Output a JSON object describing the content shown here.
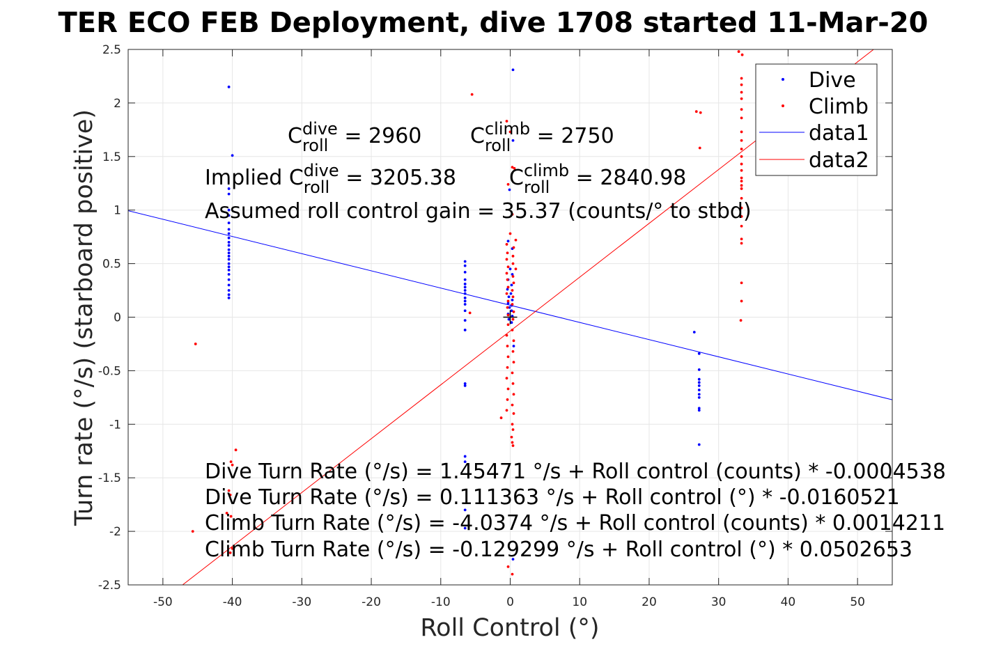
{
  "chart_data": {
    "type": "scatter",
    "title": "TER ECO FEB Deployment, dive 1708 started 11-Mar-20",
    "xlabel": "Roll Control (°)",
    "ylabel": "Turn rate (°/s) (starboard positive)",
    "xlim": [
      -55,
      55
    ],
    "ylim": [
      -2.5,
      2.5
    ],
    "xticks": [
      -50,
      -40,
      -30,
      -20,
      -10,
      0,
      10,
      20,
      30,
      40,
      50
    ],
    "yticks": [
      -2.5,
      -2,
      -1.5,
      -1,
      -0.5,
      0,
      0.5,
      1,
      1.5,
      2,
      2.5
    ],
    "grid": true,
    "legend_position": "top-right",
    "series": [
      {
        "name": "Dive",
        "kind": "points",
        "color": "#0000ff",
        "points": [
          [
            -40.5,
            2.15
          ],
          [
            -40.0,
            1.51
          ],
          [
            -40.5,
            1.2
          ],
          [
            -40.5,
            1.15
          ],
          [
            -40.5,
            1.0
          ],
          [
            -40.5,
            0.95
          ],
          [
            -40.5,
            0.88
          ],
          [
            -40.5,
            0.82
          ],
          [
            -40.5,
            0.78
          ],
          [
            -40.5,
            0.74
          ],
          [
            -40.5,
            0.7
          ],
          [
            -40.5,
            0.67
          ],
          [
            -40.5,
            0.63
          ],
          [
            -40.5,
            0.6
          ],
          [
            -40.5,
            0.57
          ],
          [
            -40.5,
            0.54
          ],
          [
            -40.5,
            0.5
          ],
          [
            -40.5,
            0.47
          ],
          [
            -40.5,
            0.44
          ],
          [
            -40.5,
            0.4
          ],
          [
            -40.5,
            0.35
          ],
          [
            -40.5,
            0.3
          ],
          [
            -40.5,
            0.25
          ],
          [
            -40.5,
            0.21
          ],
          [
            -40.5,
            0.18
          ],
          [
            -6.5,
            0.52
          ],
          [
            -6.5,
            0.48
          ],
          [
            -6.5,
            0.42
          ],
          [
            -6.5,
            0.35
          ],
          [
            -6.5,
            0.31
          ],
          [
            -6.5,
            0.28
          ],
          [
            -6.5,
            0.25
          ],
          [
            -6.5,
            0.22
          ],
          [
            -6.5,
            0.18
          ],
          [
            -6.5,
            0.15
          ],
          [
            -6.5,
            0.12
          ],
          [
            -6.5,
            0.06
          ],
          [
            -6.5,
            -0.03
          ],
          [
            -6.5,
            -0.12
          ],
          [
            -6.5,
            -0.62
          ],
          [
            -6.5,
            -0.64
          ],
          [
            -6.5,
            -1.3
          ],
          [
            -6.5,
            -1.35
          ],
          [
            -6.5,
            -1.8
          ],
          [
            -6.5,
            -1.97
          ],
          [
            0.4,
            2.31
          ],
          [
            0.4,
            1.65
          ],
          [
            -0.1,
            1.19
          ],
          [
            -0.3,
            0.71
          ],
          [
            0.3,
            0.64
          ],
          [
            0.0,
            0.45
          ],
          [
            0.3,
            0.4
          ],
          [
            -0.3,
            0.35
          ],
          [
            0.2,
            0.3
          ],
          [
            -0.4,
            0.26
          ],
          [
            0.1,
            0.22
          ],
          [
            -0.2,
            0.19
          ],
          [
            0.3,
            0.16
          ],
          [
            -0.3,
            0.13
          ],
          [
            0.2,
            0.11
          ],
          [
            -0.1,
            0.09
          ],
          [
            0.2,
            0.06
          ],
          [
            -0.3,
            0.03
          ],
          [
            0.3,
            0.01
          ],
          [
            -0.2,
            -0.02
          ],
          [
            0.2,
            -0.05
          ],
          [
            0.5,
            -0.27
          ],
          [
            0.4,
            -2.26
          ],
          [
            26.5,
            -0.14
          ],
          [
            27.2,
            -0.34
          ],
          [
            27.2,
            -0.49
          ],
          [
            27.2,
            -0.58
          ],
          [
            27.2,
            -0.61
          ],
          [
            27.2,
            -0.64
          ],
          [
            27.2,
            -0.68
          ],
          [
            27.2,
            -0.72
          ],
          [
            27.2,
            -0.75
          ],
          [
            27.2,
            -0.85
          ],
          [
            27.2,
            -0.87
          ],
          [
            27.2,
            -1.19
          ]
        ]
      },
      {
        "name": "Climb",
        "kind": "points",
        "color": "#ff0000",
        "points": [
          [
            -45.3,
            -0.25
          ],
          [
            -45.7,
            -2.0
          ],
          [
            -39.5,
            -1.24
          ],
          [
            -40.2,
            -1.35
          ],
          [
            -40.0,
            -1.38
          ],
          [
            -40.5,
            -1.62
          ],
          [
            -40.3,
            -1.66
          ],
          [
            -40.8,
            -1.83
          ],
          [
            -40.2,
            -1.86
          ],
          [
            -40.0,
            -2.16
          ],
          [
            -40.3,
            -2.2
          ],
          [
            -5.5,
            2.08
          ],
          [
            -5.8,
            0.04
          ],
          [
            -0.5,
            1.83
          ],
          [
            0.0,
            1.73
          ],
          [
            0.3,
            1.4
          ],
          [
            0.6,
            1.39
          ],
          [
            -0.3,
            1.24
          ],
          [
            0.3,
            0.96
          ],
          [
            0.0,
            0.78
          ],
          [
            0.8,
            0.72
          ],
          [
            -0.5,
            0.68
          ],
          [
            0.5,
            0.65
          ],
          [
            -0.4,
            0.6
          ],
          [
            0.4,
            0.57
          ],
          [
            -0.5,
            0.54
          ],
          [
            0.4,
            0.5
          ],
          [
            -0.3,
            0.47
          ],
          [
            0.8,
            0.45
          ],
          [
            -0.5,
            0.41
          ],
          [
            0.4,
            0.38
          ],
          [
            -0.4,
            0.35
          ],
          [
            0.5,
            0.32
          ],
          [
            -0.3,
            0.28
          ],
          [
            0.3,
            0.25
          ],
          [
            -0.5,
            0.22
          ],
          [
            0.4,
            0.19
          ],
          [
            -0.3,
            0.15
          ],
          [
            0.3,
            0.12
          ],
          [
            -0.4,
            0.09
          ],
          [
            0.5,
            0.05
          ],
          [
            -0.3,
            0.02
          ],
          [
            0.4,
            -0.02
          ],
          [
            -0.3,
            -0.07
          ],
          [
            0.3,
            -0.12
          ],
          [
            -0.5,
            -0.17
          ],
          [
            0.5,
            -0.22
          ],
          [
            -0.4,
            -0.27
          ],
          [
            0.4,
            -0.32
          ],
          [
            -0.3,
            -0.37
          ],
          [
            0.5,
            -0.42
          ],
          [
            -0.4,
            -0.47
          ],
          [
            0.3,
            -0.52
          ],
          [
            -0.5,
            -0.57
          ],
          [
            0.4,
            -0.62
          ],
          [
            -0.3,
            -0.67
          ],
          [
            0.5,
            -0.72
          ],
          [
            -0.4,
            -0.77
          ],
          [
            0.3,
            -0.82
          ],
          [
            -0.5,
            -0.87
          ],
          [
            0.5,
            -0.9
          ],
          [
            -1.3,
            -0.94
          ],
          [
            0.3,
            -1.0
          ],
          [
            0.4,
            -1.05
          ],
          [
            0.2,
            -1.12
          ],
          [
            0.3,
            -1.17
          ],
          [
            0.4,
            -1.2
          ],
          [
            -0.3,
            -2.33
          ],
          [
            0.3,
            -2.4
          ],
          [
            26.8,
            1.92
          ],
          [
            27.4,
            1.91
          ],
          [
            27.3,
            1.58
          ],
          [
            32.9,
            2.48
          ],
          [
            33.4,
            2.45
          ],
          [
            33.3,
            2.23
          ],
          [
            33.3,
            2.17
          ],
          [
            33.3,
            2.1
          ],
          [
            33.3,
            2.04
          ],
          [
            33.3,
            1.94
          ],
          [
            33.3,
            1.86
          ],
          [
            33.3,
            1.73
          ],
          [
            33.3,
            1.65
          ],
          [
            33.3,
            1.57
          ],
          [
            33.3,
            1.5
          ],
          [
            33.3,
            1.43
          ],
          [
            33.3,
            1.37
          ],
          [
            33.3,
            1.3
          ],
          [
            33.3,
            1.27
          ],
          [
            33.3,
            1.23
          ],
          [
            33.3,
            1.2
          ],
          [
            33.3,
            1.11
          ],
          [
            33.3,
            1.02
          ],
          [
            33.3,
            0.94
          ],
          [
            33.3,
            0.85
          ],
          [
            33.3,
            0.73
          ],
          [
            33.3,
            0.69
          ],
          [
            33.3,
            0.32
          ],
          [
            33.3,
            0.15
          ],
          [
            33.2,
            -0.03
          ]
        ]
      },
      {
        "name": "data1",
        "kind": "line",
        "color": "#0000ff",
        "intercept": 0.111363,
        "slope": -0.0160521
      },
      {
        "name": "data2",
        "kind": "line",
        "color": "#ff0000",
        "intercept": -0.129299,
        "slope": 0.0502653
      }
    ],
    "annotations": [
      {
        "pre": "C",
        "sup": "dive",
        "sub": "roll",
        "post": " = 2960"
      },
      {
        "pre": "C",
        "sup": "climb",
        "sub": "roll",
        "post": " = 2750"
      },
      {
        "pre": "Implied C",
        "sup": "dive",
        "sub": "roll",
        "post": " = 3205.38"
      },
      {
        "pre": "C",
        "sup": "climb",
        "sub": "roll",
        "post": " = 2840.98"
      }
    ],
    "text_lines": [
      "Assumed roll control gain = 35.37 (counts/° to stbd)",
      "Dive Turn Rate (°/s) = 1.45471 °/s + Roll control (counts) * -0.0004538",
      "Dive Turn Rate (°/s) = 0.111363 °/s + Roll control (°) * -0.0160521",
      "Climb Turn Rate (°/s) = -4.0374 °/s + Roll control (counts) * 0.0014211",
      "Climb Turn Rate (°/s) = -0.129299 °/s + Roll control (°) * 0.0502653"
    ],
    "legend": [
      "Dive",
      "Climb",
      "data1",
      "data2"
    ]
  }
}
